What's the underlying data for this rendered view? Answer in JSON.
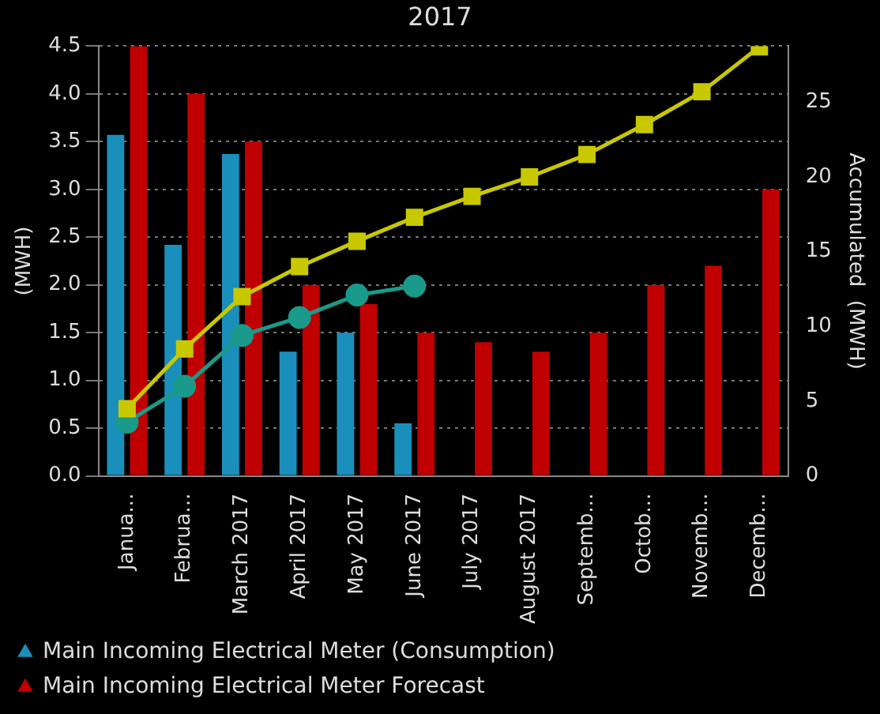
{
  "chart_data": {
    "type": "bar",
    "title": "2017",
    "ylabel": "(MWH)",
    "y2label": "Accumulated  (MWH)",
    "categories": [
      "Janua...",
      "Februa...",
      "March 2017",
      "April 2017",
      "May 2017",
      "June 2017",
      "July 2017",
      "August 2017",
      "Septemb...",
      "Octob...",
      "Novemb...",
      "Decemb..."
    ],
    "series": [
      {
        "name": "Main Incoming Electrical Meter (Consumption)",
        "color": "#1b8fbb",
        "values": [
          3.57,
          2.42,
          3.37,
          1.3,
          1.5,
          0.55,
          null,
          null,
          null,
          null,
          null,
          null
        ]
      },
      {
        "name": "Main Incoming Electrical Meter Forecast",
        "color": "#c00000",
        "values": [
          4.5,
          4.0,
          3.5,
          2.0,
          1.8,
          1.5,
          1.4,
          1.3,
          1.5,
          2.0,
          2.2,
          3.0
        ]
      },
      {
        "type": "line",
        "axis": "y2",
        "color": "#c8c800",
        "marker": "square",
        "values": [
          4.5,
          8.5,
          12,
          14,
          15.7,
          17.3,
          18.7,
          20,
          21.5,
          23.5,
          25.7,
          28.7
        ]
      },
      {
        "type": "line",
        "axis": "y2",
        "color": "#1a9a8a",
        "marker": "circle",
        "values": [
          3.6,
          6.0,
          9.4,
          10.6,
          12.1,
          12.7,
          null,
          null,
          null,
          null,
          null,
          null
        ]
      }
    ],
    "ylim": [
      0,
      4.5
    ],
    "yticks": [
      {
        "value": 0,
        "label": "0.0"
      },
      0.5,
      {
        "value": 1,
        "label": "1.0"
      },
      1.5,
      {
        "value": 2,
        "label": "2.0"
      },
      2.5,
      {
        "value": 3,
        "label": "3.0"
      },
      3.5,
      {
        "value": 4,
        "label": "4.0"
      },
      4.5
    ],
    "y2lim": [
      0,
      28.75
    ],
    "y2ticks": [
      0,
      5,
      10,
      15,
      20,
      25
    ],
    "grid": "y",
    "legend": "bottom left"
  }
}
